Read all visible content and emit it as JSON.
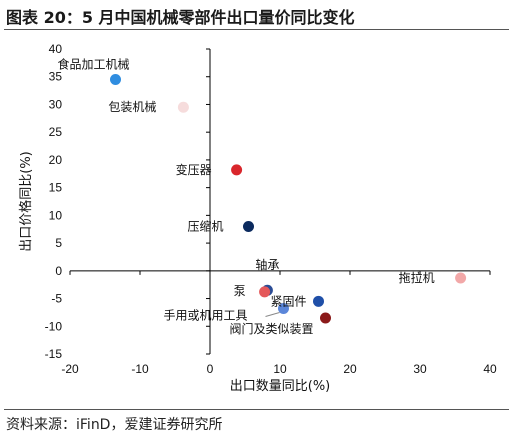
{
  "header": {
    "title": "图表 20：5 月中国机械零部件出口量价同比变化"
  },
  "footer": {
    "source": "资料来源：iFinD，爱建证券研究所"
  },
  "colors": {
    "axis": "#000000",
    "rule": "#555555",
    "leader": "#888888"
  },
  "chart_data": {
    "type": "scatter",
    "title": "",
    "xlabel": "出口数量同比(%)",
    "ylabel": "出口价格同比(%)",
    "xlim": [
      -20,
      40
    ],
    "ylim": [
      -15,
      40
    ],
    "xticks": [
      -20,
      -10,
      0,
      10,
      20,
      30,
      40
    ],
    "yticks": [
      -15,
      -10,
      -5,
      0,
      5,
      10,
      15,
      20,
      25,
      30,
      35,
      40
    ],
    "grid": false,
    "points": [
      {
        "label": "食品加工机械",
        "x": -13.5,
        "y": 34.5,
        "color": "#2f8de0"
      },
      {
        "label": "包装机械",
        "x": -3.8,
        "y": 29.5,
        "color": "#f6dcdc"
      },
      {
        "label": "变压器",
        "x": 3.8,
        "y": 18.2,
        "color": "#d9262c"
      },
      {
        "label": "压缩机",
        "x": 5.5,
        "y": 8.0,
        "color": "#0b2a5e"
      },
      {
        "label": "拖拉机",
        "x": 35.8,
        "y": -1.3,
        "color": "#f2a8a8"
      },
      {
        "label": "轴承",
        "x": 8.2,
        "y": -3.5,
        "color": "#2a4c95"
      },
      {
        "label": "泵",
        "x": 7.8,
        "y": -3.8,
        "color": "#e4585a"
      },
      {
        "label": "紧固件",
        "x": 15.5,
        "y": -5.5,
        "color": "#1f4fa8"
      },
      {
        "label": "手用或机用工具",
        "x": 10.5,
        "y": -6.8,
        "color": "#5b86d9"
      },
      {
        "label": "阀门及类似装置",
        "x": 16.5,
        "y": -8.5,
        "color": "#8b1a1a"
      }
    ]
  }
}
